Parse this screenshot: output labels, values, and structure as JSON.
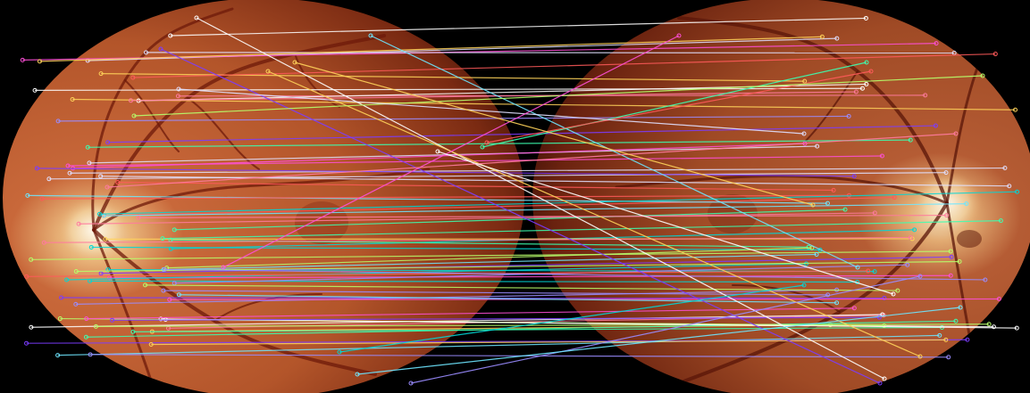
{
  "image": {
    "description_tag": "fundus-image-pair-with-keypoint-matches",
    "background_color": "#000000",
    "left_image": {
      "kind": "retinal-fundus-photograph",
      "optic_disc_side": "left"
    },
    "right_image": {
      "kind": "retinal-fundus-photograph",
      "optic_disc_side": "right"
    }
  },
  "match_colors": [
    "#ffffff",
    "#00d7d7",
    "#ff4fd8",
    "#7b3cff",
    "#b7ff6b",
    "#ffd35a",
    "#3cffb0",
    "#ff7a9e",
    "#9a8cff",
    "#e0e0ff",
    "#6ee6ff",
    "#ff5a5a"
  ]
}
